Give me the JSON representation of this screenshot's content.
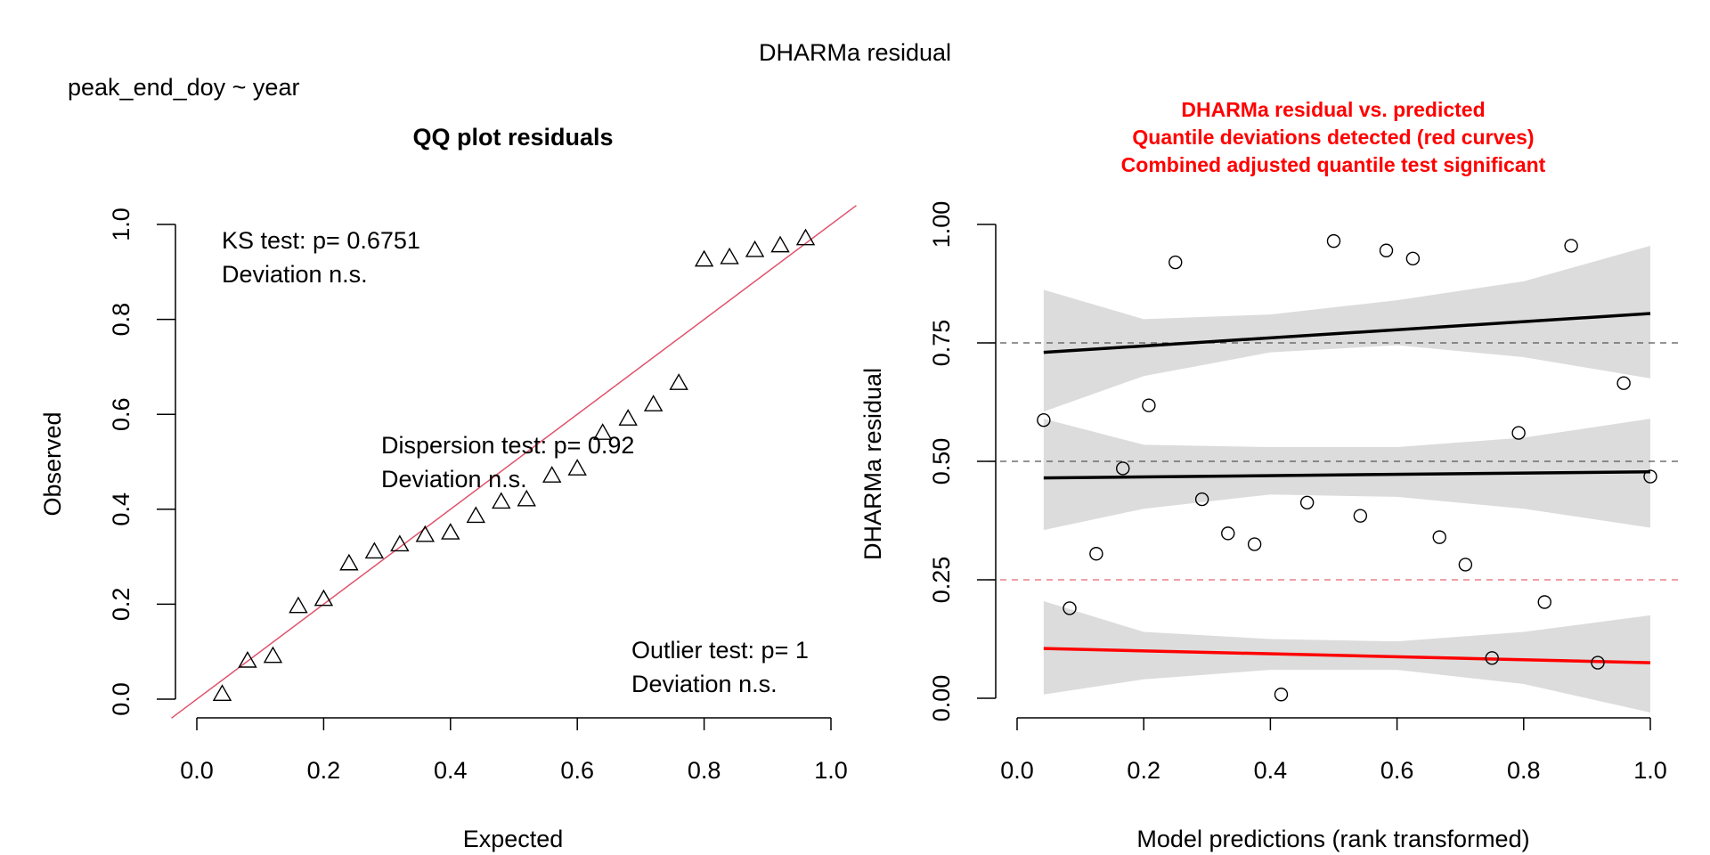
{
  "page": {
    "title": "DHARMa residual",
    "formula": "peak_end_doy ~ year"
  },
  "colors": {
    "qq_line": "#DF536B",
    "loess_red": "#ff0000",
    "band": "#dcdcdc",
    "red_text": "#ff0000"
  },
  "chart_data": [
    {
      "type": "scatter",
      "title": "QQ plot residuals",
      "xlabel": "Expected",
      "ylabel": "Observed",
      "xlim": [
        0,
        1
      ],
      "ylim": [
        0,
        1
      ],
      "xticks": [
        "0.0",
        "0.2",
        "0.4",
        "0.6",
        "0.8",
        "1.0"
      ],
      "yticks": [
        "0.0",
        "0.2",
        "0.4",
        "0.6",
        "0.8",
        "1.0"
      ],
      "reference_line": "identity",
      "marker": "triangle",
      "points": [
        {
          "x": 0.04,
          "y": 0.01
        },
        {
          "x": 0.08,
          "y": 0.08
        },
        {
          "x": 0.12,
          "y": 0.09
        },
        {
          "x": 0.16,
          "y": 0.195
        },
        {
          "x": 0.2,
          "y": 0.21
        },
        {
          "x": 0.24,
          "y": 0.285
        },
        {
          "x": 0.28,
          "y": 0.31
        },
        {
          "x": 0.32,
          "y": 0.325
        },
        {
          "x": 0.36,
          "y": 0.345
        },
        {
          "x": 0.4,
          "y": 0.35
        },
        {
          "x": 0.44,
          "y": 0.385
        },
        {
          "x": 0.48,
          "y": 0.415
        },
        {
          "x": 0.52,
          "y": 0.42
        },
        {
          "x": 0.56,
          "y": 0.47
        },
        {
          "x": 0.6,
          "y": 0.485
        },
        {
          "x": 0.64,
          "y": 0.56
        },
        {
          "x": 0.68,
          "y": 0.59
        },
        {
          "x": 0.72,
          "y": 0.62
        },
        {
          "x": 0.76,
          "y": 0.665
        },
        {
          "x": 0.8,
          "y": 0.925
        },
        {
          "x": 0.84,
          "y": 0.93
        },
        {
          "x": 0.88,
          "y": 0.945
        },
        {
          "x": 0.92,
          "y": 0.955
        },
        {
          "x": 0.96,
          "y": 0.97
        }
      ],
      "annotations": {
        "ks_line1": "KS test: p= 0.6751",
        "ks_line2": "Deviation  n.s.",
        "disp_line1": "Dispersion test: p= 0.92",
        "disp_line2": "Deviation  n.s.",
        "out_line1": "Outlier test: p= 1",
        "out_line2": "Deviation  n.s."
      }
    },
    {
      "type": "scatter",
      "title_lines": [
        "DHARMa residual vs. predicted",
        "Quantile deviations detected (red curves)",
        "Combined adjusted quantile test significant"
      ],
      "xlabel": "Model predictions (rank transformed)",
      "ylabel": "DHARMa residual",
      "xlim": [
        0,
        1
      ],
      "ylim": [
        0,
        1
      ],
      "xticks": [
        "0.0",
        "0.2",
        "0.4",
        "0.6",
        "0.8",
        "1.0"
      ],
      "yticks": [
        "0.00",
        "0.25",
        "0.50",
        "0.75",
        "1.00"
      ],
      "reference_lines": [
        {
          "y": 0.25,
          "color": "red"
        },
        {
          "y": 0.5,
          "color": "black"
        },
        {
          "y": 0.75,
          "color": "black"
        }
      ],
      "marker": "circle",
      "points": [
        {
          "x": 0.042,
          "y": 0.587
        },
        {
          "x": 0.083,
          "y": 0.19
        },
        {
          "x": 0.125,
          "y": 0.305
        },
        {
          "x": 0.167,
          "y": 0.485
        },
        {
          "x": 0.208,
          "y": 0.618
        },
        {
          "x": 0.25,
          "y": 0.92
        },
        {
          "x": 0.292,
          "y": 0.42
        },
        {
          "x": 0.333,
          "y": 0.348
        },
        {
          "x": 0.375,
          "y": 0.325
        },
        {
          "x": 0.417,
          "y": 0.008
        },
        {
          "x": 0.458,
          "y": 0.413
        },
        {
          "x": 0.5,
          "y": 0.965
        },
        {
          "x": 0.542,
          "y": 0.385
        },
        {
          "x": 0.583,
          "y": 0.945
        },
        {
          "x": 0.625,
          "y": 0.928
        },
        {
          "x": 0.667,
          "y": 0.34
        },
        {
          "x": 0.708,
          "y": 0.282
        },
        {
          "x": 0.75,
          "y": 0.085
        },
        {
          "x": 0.792,
          "y": 0.56
        },
        {
          "x": 0.833,
          "y": 0.203
        },
        {
          "x": 0.875,
          "y": 0.955
        },
        {
          "x": 0.917,
          "y": 0.075
        },
        {
          "x": 0.958,
          "y": 0.665
        },
        {
          "x": 1.0,
          "y": 0.468
        }
      ],
      "quantile_fits": [
        {
          "quantile": 0.25,
          "color": "red",
          "x": [
            0.042,
            1.0
          ],
          "y": [
            0.105,
            0.075
          ],
          "band_x": [
            0.042,
            0.2,
            0.4,
            0.6,
            0.8,
            1.0
          ],
          "band_lo": [
            0.008,
            0.04,
            0.06,
            0.06,
            0.03,
            -0.03
          ],
          "band_hi": [
            0.205,
            0.14,
            0.125,
            0.12,
            0.14,
            0.175
          ]
        },
        {
          "quantile": 0.5,
          "color": "black",
          "x": [
            0.042,
            1.0
          ],
          "y": [
            0.465,
            0.478
          ],
          "band_x": [
            0.042,
            0.2,
            0.4,
            0.6,
            0.8,
            1.0
          ],
          "band_lo": [
            0.355,
            0.4,
            0.43,
            0.425,
            0.4,
            0.36
          ],
          "band_hi": [
            0.59,
            0.535,
            0.53,
            0.53,
            0.55,
            0.59
          ]
        },
        {
          "quantile": 0.75,
          "color": "black",
          "x": [
            0.042,
            1.0
          ],
          "y": [
            0.73,
            0.812
          ],
          "band_x": [
            0.042,
            0.2,
            0.4,
            0.6,
            0.8,
            1.0
          ],
          "band_lo": [
            0.605,
            0.68,
            0.73,
            0.745,
            0.72,
            0.675
          ],
          "band_hi": [
            0.862,
            0.8,
            0.81,
            0.84,
            0.88,
            0.955
          ]
        }
      ]
    }
  ]
}
